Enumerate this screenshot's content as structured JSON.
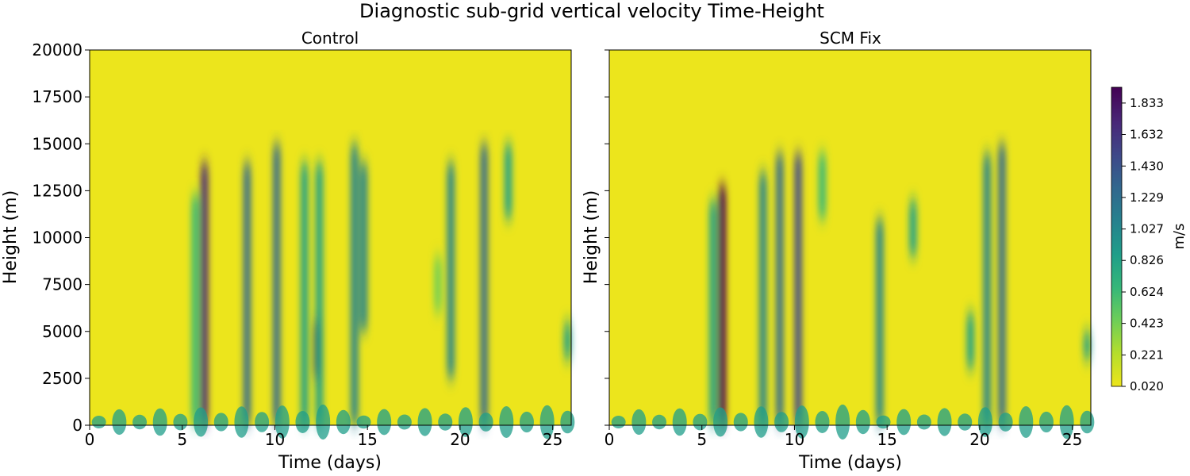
{
  "chart_data": {
    "type": "heatmap",
    "title": "Diagnostic sub-grid vertical velocity Time-Height",
    "colorbar": {
      "label": "m/s",
      "ticks": [
        "0.020",
        "0.221",
        "0.423",
        "0.624",
        "0.826",
        "1.027",
        "1.229",
        "1.430",
        "1.632",
        "1.833"
      ],
      "range": [
        0.02,
        1.934
      ],
      "levels": 19,
      "colormap": "viridis_r"
    },
    "panels": [
      {
        "title": "Control",
        "xlabel": "Time (days)",
        "ylabel": "Height (m)",
        "xlim": [
          0,
          26
        ],
        "ylim": [
          0,
          20000
        ],
        "xticks": [
          "0",
          "5",
          "10",
          "15",
          "20",
          "25"
        ],
        "yticks": [
          "0",
          "2500",
          "5000",
          "7500",
          "10000",
          "12500",
          "15000",
          "17500",
          "20000"
        ],
        "features": [
          {
            "t": 5.7,
            "z0": 0,
            "z1": 12300,
            "v": 0.7
          },
          {
            "t": 6.2,
            "z0": 0,
            "z1": 14000,
            "v": 1.8
          },
          {
            "t": 8.5,
            "z0": 0,
            "z1": 14000,
            "v": 1.4
          },
          {
            "t": 10.1,
            "z0": 0,
            "z1": 15000,
            "v": 1.2
          },
          {
            "t": 11.6,
            "z0": 0,
            "z1": 14000,
            "v": 0.9
          },
          {
            "t": 12.3,
            "z0": 2500,
            "z1": 5600,
            "v": 1.9
          },
          {
            "t": 12.4,
            "z0": 0,
            "z1": 14000,
            "v": 0.9
          },
          {
            "t": 14.3,
            "z0": 0,
            "z1": 15000,
            "v": 1.0
          },
          {
            "t": 14.8,
            "z0": 5000,
            "z1": 14000,
            "v": 1.1
          },
          {
            "t": 18.8,
            "z0": 6000,
            "z1": 9000,
            "v": 0.5
          },
          {
            "t": 19.5,
            "z0": 2500,
            "z1": 14000,
            "v": 1.0
          },
          {
            "t": 21.3,
            "z0": 0,
            "z1": 15000,
            "v": 1.3
          },
          {
            "t": 22.6,
            "z0": 11000,
            "z1": 15000,
            "v": 0.9
          },
          {
            "t": 25.8,
            "z0": 3500,
            "z1": 5500,
            "v": 0.8
          }
        ]
      },
      {
        "title": "SCM Fix",
        "xlabel": "Time (days)",
        "ylabel": "Height (m)",
        "xlim": [
          0,
          26
        ],
        "ylim": [
          0,
          20000
        ],
        "xticks": [
          "0",
          "5",
          "10",
          "15",
          "20",
          "25"
        ],
        "yticks": [
          "",
          "",
          "",
          "",
          "",
          "",
          "",
          "",
          ""
        ],
        "features": [
          {
            "t": 5.6,
            "z0": 0,
            "z1": 12000,
            "v": 0.8
          },
          {
            "t": 6.1,
            "z0": 0,
            "z1": 12800,
            "v": 1.9
          },
          {
            "t": 8.3,
            "z0": 0,
            "z1": 13500,
            "v": 1.0
          },
          {
            "t": 9.2,
            "z0": 0,
            "z1": 14500,
            "v": 1.4
          },
          {
            "t": 10.2,
            "z0": 0,
            "z1": 14500,
            "v": 1.6
          },
          {
            "t": 11.5,
            "z0": 11000,
            "z1": 14500,
            "v": 0.7
          },
          {
            "t": 14.6,
            "z0": 0,
            "z1": 11000,
            "v": 1.0
          },
          {
            "t": 16.4,
            "z0": 9000,
            "z1": 12000,
            "v": 0.8
          },
          {
            "t": 19.5,
            "z0": 3000,
            "z1": 6000,
            "v": 0.9
          },
          {
            "t": 20.4,
            "z0": 0,
            "z1": 14500,
            "v": 1.1
          },
          {
            "t": 21.2,
            "z0": 0,
            "z1": 15000,
            "v": 1.2
          },
          {
            "t": 25.8,
            "z0": 3500,
            "z1": 5000,
            "v": 0.8
          }
        ]
      }
    ]
  }
}
